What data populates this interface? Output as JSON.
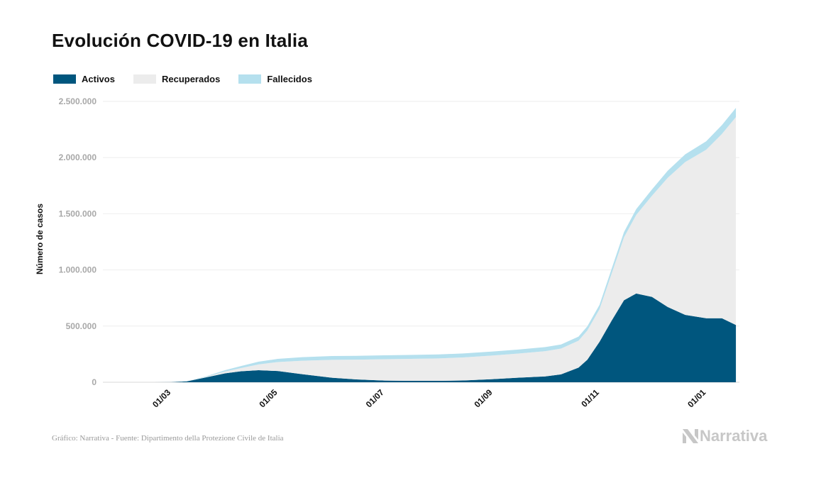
{
  "chart_data": {
    "type": "area",
    "title": "Evolución COVID-19 en Italia",
    "ylabel": "Número de casos",
    "xlabel": "",
    "stacked": true,
    "ylim": [
      0,
      2500000
    ],
    "xlim": [
      "2020-01-22",
      "2021-01-20"
    ],
    "y_ticks": [
      0,
      500000,
      1000000,
      1500000,
      2000000,
      2500000
    ],
    "y_tick_labels": [
      "0",
      "500.000",
      "1.000.000",
      "1.500.000",
      "2.000.000",
      "2.500.000"
    ],
    "x_ticks": [
      "2020-03-01",
      "2020-05-01",
      "2020-07-01",
      "2020-09-01",
      "2020-11-01",
      "2021-01-01"
    ],
    "x_tick_labels": [
      "01/03",
      "01/05",
      "01/07",
      "01/09",
      "01/11",
      "01/01"
    ],
    "grid": "horizontal",
    "legend_position": "top-left",
    "x": [
      "2020-02-20",
      "2020-03-01",
      "2020-03-10",
      "2020-03-20",
      "2020-04-01",
      "2020-04-10",
      "2020-04-20",
      "2020-05-01",
      "2020-05-15",
      "2020-06-01",
      "2020-06-15",
      "2020-07-01",
      "2020-07-15",
      "2020-08-01",
      "2020-08-15",
      "2020-09-01",
      "2020-09-15",
      "2020-10-01",
      "2020-10-10",
      "2020-10-20",
      "2020-10-25",
      "2020-11-01",
      "2020-11-08",
      "2020-11-15",
      "2020-11-22",
      "2020-12-01",
      "2020-12-10",
      "2020-12-20",
      "2021-01-01",
      "2021-01-10",
      "2021-01-18"
    ],
    "series": [
      {
        "name": "Activos",
        "color": "#00567e",
        "values": [
          0,
          1000,
          8000,
          40000,
          80000,
          98000,
          107000,
          100000,
          72000,
          40000,
          25000,
          15000,
          13000,
          12500,
          16000,
          28000,
          40000,
          52000,
          70000,
          130000,
          200000,
          360000,
          550000,
          730000,
          790000,
          760000,
          670000,
          600000,
          570000,
          570000,
          510000
        ]
      },
      {
        "name": "Recuperados",
        "color": "#ececec",
        "values": [
          0,
          100,
          1000,
          4000,
          16000,
          28000,
          52000,
          80000,
          120000,
          160000,
          176000,
          190000,
          195000,
          200000,
          205000,
          210000,
          215000,
          225000,
          230000,
          240000,
          260000,
          290000,
          420000,
          560000,
          700000,
          900000,
          1150000,
          1360000,
          1500000,
          1640000,
          1850000
        ]
      },
      {
        "name": "Fallecidos",
        "color": "#b5e0ee",
        "values": [
          0,
          30,
          600,
          4000,
          12000,
          18500,
          24000,
          28000,
          31500,
          33400,
          34400,
          34800,
          35000,
          35200,
          35400,
          35500,
          35700,
          36000,
          36300,
          36800,
          37500,
          39000,
          43000,
          47000,
          51000,
          56000,
          63000,
          69000,
          75000,
          79000,
          82000
        ]
      }
    ]
  },
  "source": "Gráfico: Narrativa - Fuente: Dipartimento della Protezione Civile de Italia",
  "brand": "Narrativa",
  "brand_logo_icon": "narrativa-n-icon"
}
